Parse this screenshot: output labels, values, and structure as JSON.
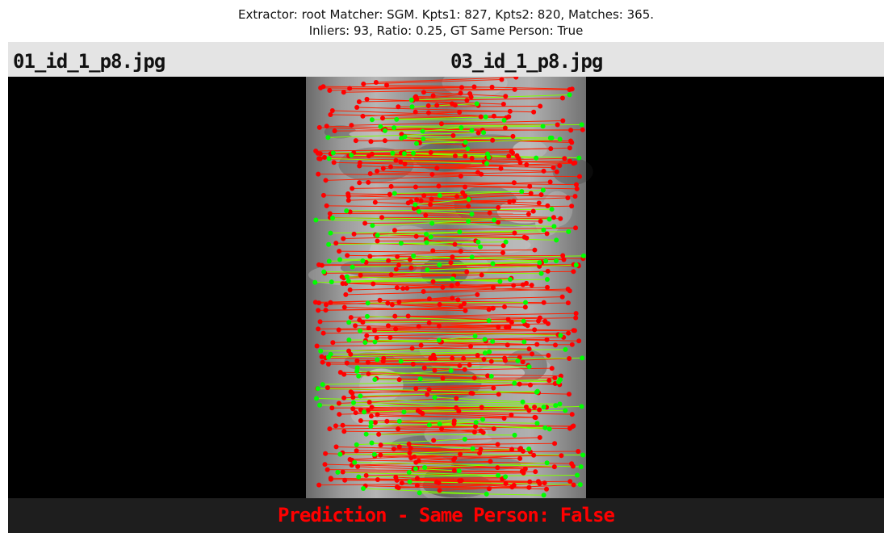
{
  "title": {
    "line1": "Extractor:  root Matcher: SGM. Kpts1: 827, Kpts2: 820, Matches: 365.",
    "line2": "Inliers: 93, Ratio: 0.25, GT Same Person: True"
  },
  "images": {
    "left_name": "01_id_1_p8.jpg",
    "right_name": "03_id_1_p8.jpg"
  },
  "prediction": "Prediction - Same Person: False",
  "colors": {
    "inlier": "#00ff00",
    "outlier": "#ff0000",
    "prediction": "#ff0000"
  }
}
